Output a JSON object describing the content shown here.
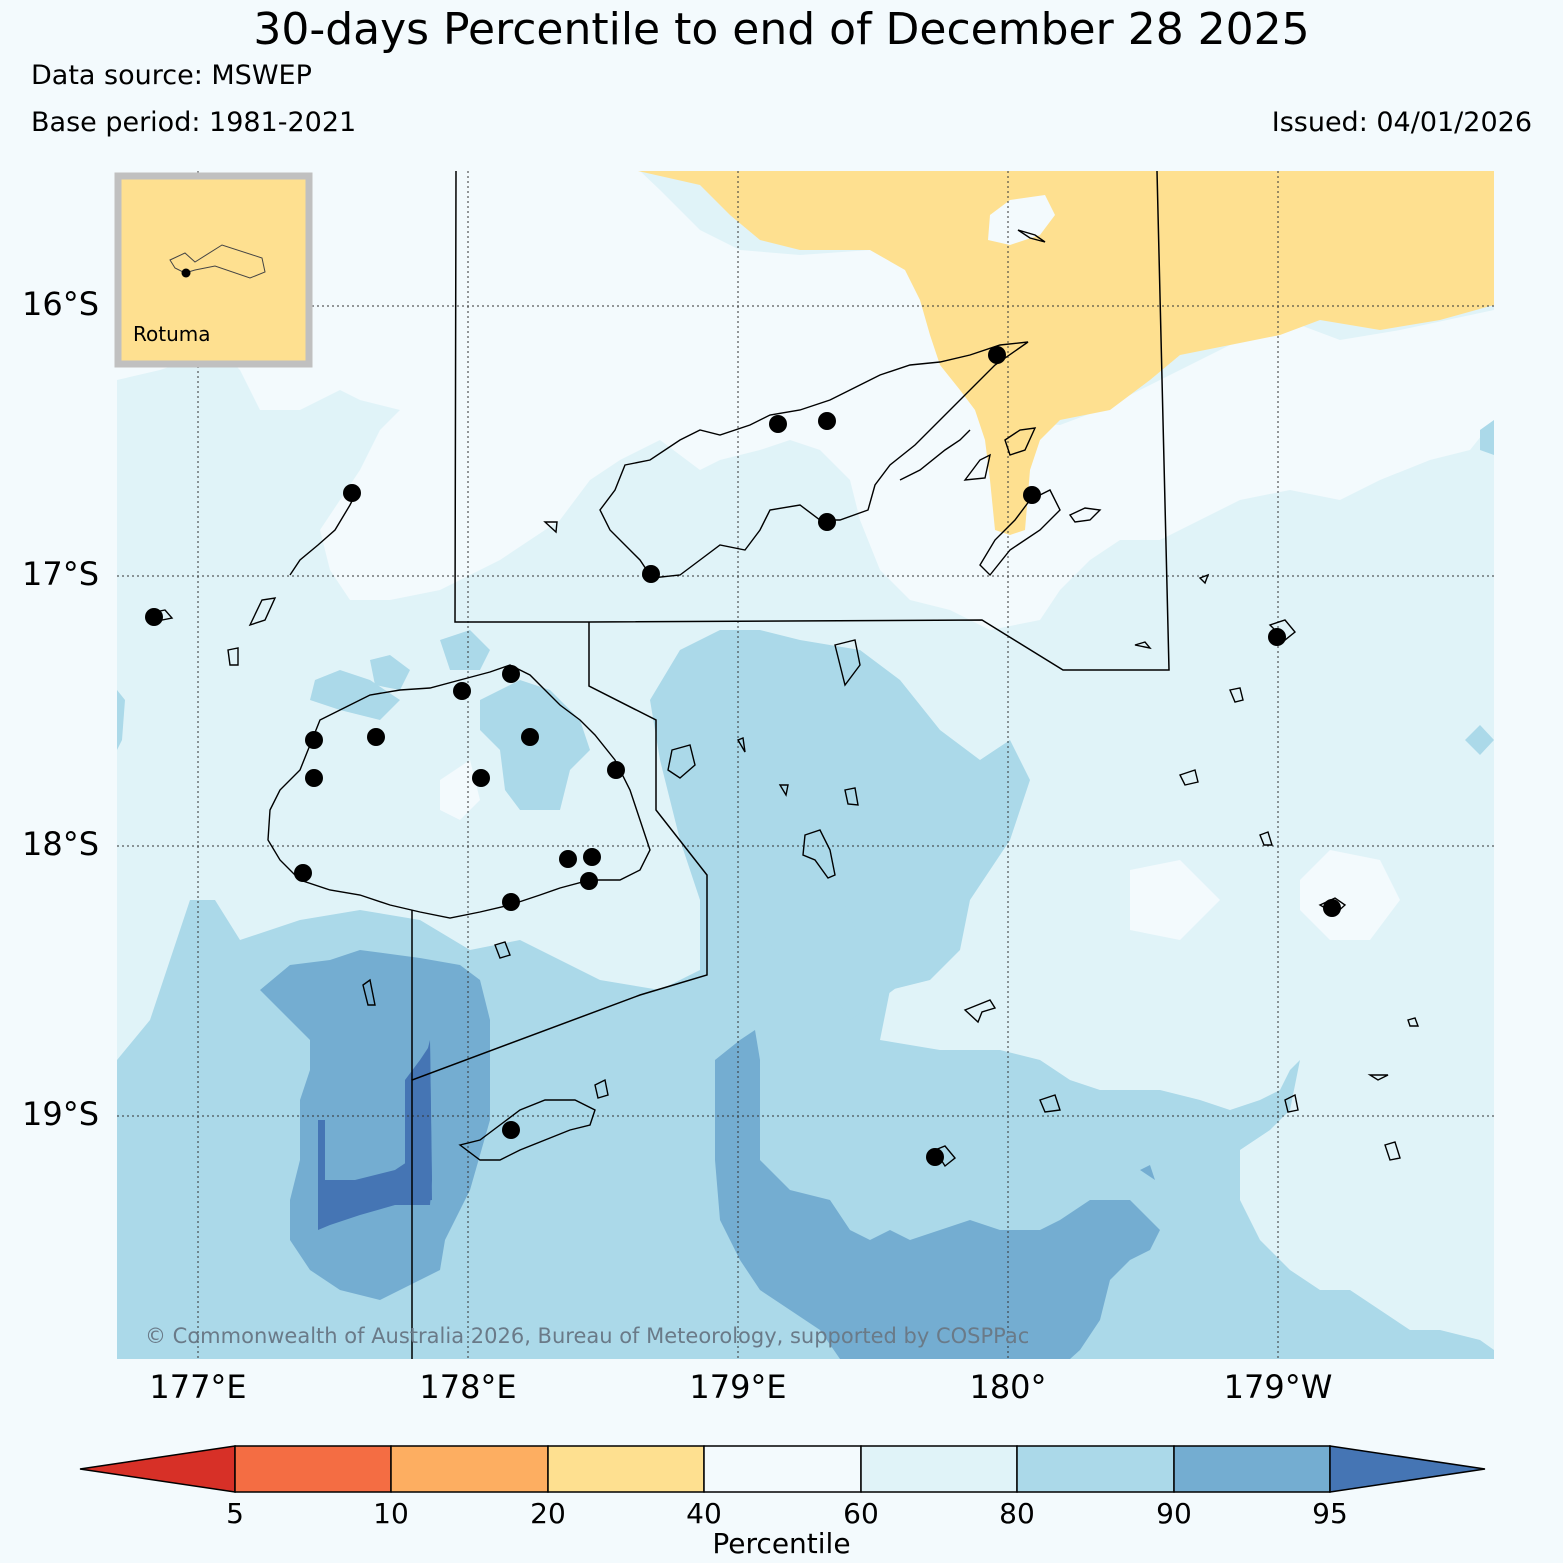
{
  "header": {
    "title": "30-days Percentile to end of December 28 2025",
    "data_source": "Data source: MSWEP",
    "base_period": "Base period: 1981-2021",
    "issued": "Issued: 04/01/2026"
  },
  "map": {
    "lat_labels": [
      "16°S",
      "17°S",
      "18°S",
      "19°S"
    ],
    "lon_labels": [
      "177°E",
      "178°E",
      "179°E",
      "180°",
      "179°W"
    ],
    "copyright": "© Commonwealth of Australia 2026, Bureau of Meteorology, supported by COSPPac",
    "inset_label": "Rotuma",
    "colors": {
      "ocean_bg": "#f3fafd",
      "pct_20_40": "#fee090",
      "pct_40_60": "#f3fafd",
      "pct_60_80": "#e0f3f8",
      "pct_80_90": "#abd9e9",
      "pct_90_95": "#74add1",
      "pct_95_plus": "#4575b4"
    }
  },
  "colorbar": {
    "label": "Percentile",
    "ticks": [
      "5",
      "10",
      "20",
      "40",
      "60",
      "80",
      "90",
      "95"
    ],
    "colors": [
      "#d73027",
      "#f46d43",
      "#fdae61",
      "#fee090",
      "#f3fafd",
      "#e0f3f8",
      "#abd9e9",
      "#74add1",
      "#4575b4"
    ]
  }
}
